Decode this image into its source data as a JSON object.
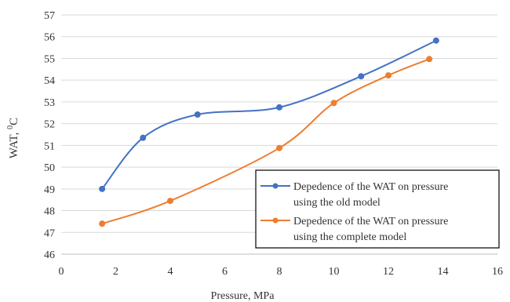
{
  "chart_data": {
    "type": "line",
    "xlabel": "Pressure, MPa",
    "ylabel": "WAT, ",
    "ylabel_unit": "C",
    "ylabel_superscript": "0",
    "xlim": [
      0,
      16
    ],
    "ylim": [
      46,
      57
    ],
    "x_ticks": [
      "0",
      "2",
      "4",
      "6",
      "8",
      "10",
      "12",
      "14",
      "16"
    ],
    "y_ticks": [
      "46",
      "47",
      "48",
      "49",
      "50",
      "51",
      "52",
      "53",
      "54",
      "55",
      "56",
      "57"
    ],
    "grid": "horizontal",
    "legend_position": "bottom-right",
    "series": [
      {
        "name_lines": [
          "Depedence of the WAT on pressure",
          "using the old model"
        ],
        "color": "#4472C4",
        "x": [
          1.5,
          3,
          5,
          8,
          11,
          13.75
        ],
        "y": [
          49.0,
          51.35,
          52.42,
          52.75,
          54.18,
          55.82
        ]
      },
      {
        "name_lines": [
          "Depedence of the WAT on pressure",
          "using the complete model"
        ],
        "color": "#ED7D31",
        "x": [
          1.5,
          4,
          8,
          10,
          12,
          13.5
        ],
        "y": [
          47.4,
          48.45,
          50.88,
          52.95,
          54.22,
          54.97
        ]
      }
    ]
  }
}
